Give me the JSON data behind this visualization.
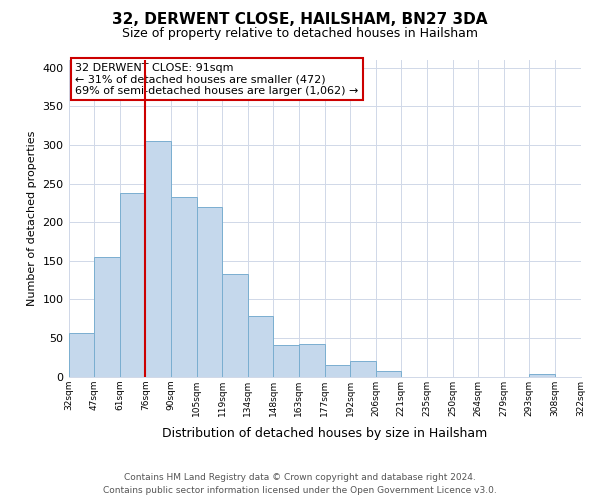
{
  "title": "32, DERWENT CLOSE, HAILSHAM, BN27 3DA",
  "subtitle": "Size of property relative to detached houses in Hailsham",
  "xlabel": "Distribution of detached houses by size in Hailsham",
  "ylabel": "Number of detached properties",
  "categories": [
    "32sqm",
    "47sqm",
    "61sqm",
    "76sqm",
    "90sqm",
    "105sqm",
    "119sqm",
    "134sqm",
    "148sqm",
    "163sqm",
    "177sqm",
    "192sqm",
    "206sqm",
    "221sqm",
    "235sqm",
    "250sqm",
    "264sqm",
    "279sqm",
    "293sqm",
    "308sqm",
    "322sqm"
  ],
  "bar_values": [
    57,
    155,
    238,
    305,
    233,
    220,
    133,
    78,
    41,
    42,
    15,
    20,
    7,
    0,
    0,
    0,
    0,
    0,
    4,
    0
  ],
  "bar_color": "#c5d8ec",
  "bar_edge_color": "#7aaed0",
  "highlight_line_color": "#cc0000",
  "highlight_bar_index": 3,
  "ylim": [
    0,
    410
  ],
  "yticks": [
    0,
    50,
    100,
    150,
    200,
    250,
    300,
    350,
    400
  ],
  "annotation_line1": "32 DERWENT CLOSE: 91sqm",
  "annotation_line2": "← 31% of detached houses are smaller (472)",
  "annotation_line3": "69% of semi-detached houses are larger (1,062) →",
  "annotation_box_color": "#ffffff",
  "annotation_box_edge": "#cc0000",
  "footer_line1": "Contains HM Land Registry data © Crown copyright and database right 2024.",
  "footer_line2": "Contains public sector information licensed under the Open Government Licence v3.0.",
  "background_color": "#ffffff",
  "grid_color": "#d0d8e8",
  "spine_color": "#d0d8e8"
}
